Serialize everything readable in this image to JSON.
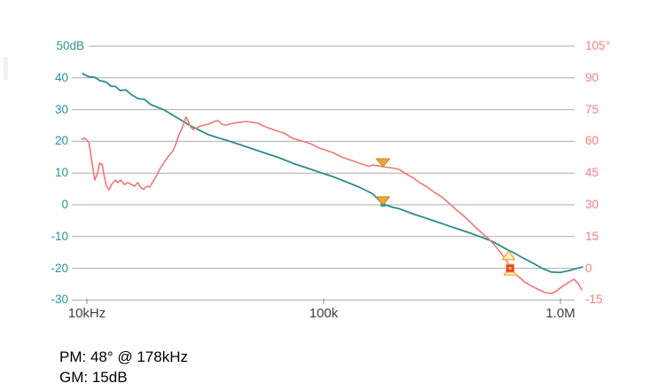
{
  "chart_data": {
    "type": "line",
    "title": "",
    "x_axis": {
      "scale": "log",
      "unit": "Hz",
      "ticks": [
        {
          "label": "10kHz",
          "f_kHz": 10
        },
        {
          "label": "100k",
          "f_kHz": 100
        },
        {
          "label": "1.0M",
          "f_kHz": 1000
        }
      ],
      "range_kHz": [
        9.5,
        1250
      ]
    },
    "y_left": {
      "name": "gain",
      "unit": "dB",
      "color": "#289696",
      "range": [
        -30,
        50
      ],
      "ticks": [
        {
          "label": "50dB",
          "value": 50
        },
        {
          "label": "40",
          "value": 40
        },
        {
          "label": "30",
          "value": 30
        },
        {
          "label": "20",
          "value": 20
        },
        {
          "label": "10",
          "value": 10
        },
        {
          "label": "0",
          "value": 0
        },
        {
          "label": "-10",
          "value": -10
        },
        {
          "label": "-20",
          "value": -20
        },
        {
          "label": "-30",
          "value": -30
        }
      ]
    },
    "y_right": {
      "name": "phase",
      "unit": "deg",
      "color": "#fb7d7d",
      "range": [
        -15,
        105
      ],
      "ticks": [
        {
          "label": "105°",
          "value": 105
        },
        {
          "label": "90",
          "value": 90
        },
        {
          "label": "75",
          "value": 75
        },
        {
          "label": "60",
          "value": 60
        },
        {
          "label": "45",
          "value": 45
        },
        {
          "label": "30",
          "value": 30
        },
        {
          "label": "15",
          "value": 15
        },
        {
          "label": "0",
          "value": 0
        },
        {
          "label": "-15",
          "value": -15
        }
      ]
    },
    "grid": {
      "on": true,
      "color": "#ababab"
    },
    "series": [
      {
        "name": "gain",
        "axis": "gain",
        "color": "#2e8c89",
        "width": 1.8,
        "points": [
          [
            9.6,
            41.3
          ],
          [
            10.2,
            40.3
          ],
          [
            10.8,
            40.2
          ],
          [
            11.3,
            39.2
          ],
          [
            12.1,
            38.6
          ],
          [
            12.6,
            37.4
          ],
          [
            13.2,
            37.3
          ],
          [
            13.8,
            36.0
          ],
          [
            14.6,
            36.2
          ],
          [
            15.3,
            34.9
          ],
          [
            16.4,
            33.5
          ],
          [
            17.5,
            33.2
          ],
          [
            18.6,
            31.6
          ],
          [
            19.9,
            30.7
          ],
          [
            21.2,
            29.9
          ],
          [
            23.1,
            28.2
          ],
          [
            25.2,
            26.5
          ],
          [
            27.4,
            24.9
          ],
          [
            29.9,
            23.5
          ],
          [
            32.6,
            22.1
          ],
          [
            35.5,
            21.2
          ],
          [
            38.7,
            20.4
          ],
          [
            44.1,
            19.0
          ],
          [
            50.2,
            17.6
          ],
          [
            57.1,
            16.2
          ],
          [
            65.0,
            14.8
          ],
          [
            74.0,
            13.1
          ],
          [
            84.2,
            11.7
          ],
          [
            95.8,
            10.3
          ],
          [
            109,
            8.9
          ],
          [
            124,
            7.3
          ],
          [
            141,
            5.6
          ],
          [
            161,
            3.5
          ],
          [
            178,
            0.2
          ],
          [
            196,
            -0.8
          ],
          [
            208,
            -1.2
          ],
          [
            237,
            -2.8
          ],
          [
            270,
            -4.2
          ],
          [
            307,
            -5.6
          ],
          [
            349,
            -7.0
          ],
          [
            398,
            -8.4
          ],
          [
            452,
            -9.9
          ],
          [
            515,
            -11.5
          ],
          [
            586,
            -13.8
          ],
          [
            639,
            -15.2
          ],
          [
            696,
            -16.8
          ],
          [
            759,
            -18.2
          ],
          [
            842,
            -20.1
          ],
          [
            917,
            -21.2
          ],
          [
            1000,
            -21.3
          ],
          [
            1090,
            -20.7
          ],
          [
            1190,
            -19.9
          ],
          [
            1240,
            -19.6
          ]
        ]
      },
      {
        "name": "phase",
        "axis": "phase",
        "color": "#f47676",
        "width": 1.6,
        "points": [
          [
            9.5,
            61.0
          ],
          [
            9.8,
            61.5
          ],
          [
            10.2,
            59.5
          ],
          [
            10.4,
            53.4
          ],
          [
            10.6,
            47.2
          ],
          [
            10.8,
            41.7
          ],
          [
            11.1,
            45.1
          ],
          [
            11.3,
            49.7
          ],
          [
            11.6,
            49.0
          ],
          [
            11.8,
            44.2
          ],
          [
            12.1,
            38.8
          ],
          [
            12.4,
            37.1
          ],
          [
            12.7,
            39.6
          ],
          [
            13.2,
            41.7
          ],
          [
            13.5,
            40.5
          ],
          [
            13.9,
            41.7
          ],
          [
            14.4,
            39.6
          ],
          [
            14.9,
            40.5
          ],
          [
            15.4,
            39.6
          ],
          [
            15.9,
            38.8
          ],
          [
            16.4,
            40.5
          ],
          [
            16.8,
            38.4
          ],
          [
            17.4,
            37.3
          ],
          [
            17.9,
            38.8
          ],
          [
            18.4,
            38.4
          ],
          [
            19.0,
            40.9
          ],
          [
            19.7,
            43.8
          ],
          [
            20.3,
            46.8
          ],
          [
            21.2,
            50.1
          ],
          [
            22.1,
            53.0
          ],
          [
            23.1,
            55.5
          ],
          [
            23.7,
            58.5
          ],
          [
            24.5,
            63.1
          ],
          [
            25.2,
            66.0
          ],
          [
            25.8,
            69.4
          ],
          [
            26.2,
            71.5
          ],
          [
            26.7,
            69.8
          ],
          [
            27.4,
            66.8
          ],
          [
            28.1,
            65.6
          ],
          [
            29.1,
            66.4
          ],
          [
            30.3,
            67.3
          ],
          [
            32.6,
            68.1
          ],
          [
            34.5,
            69.4
          ],
          [
            35.8,
            69.8
          ],
          [
            37.1,
            68.1
          ],
          [
            38.7,
            67.7
          ],
          [
            41.2,
            68.5
          ],
          [
            44.1,
            69.0
          ],
          [
            47.1,
            69.4
          ],
          [
            50.2,
            69.0
          ],
          [
            52.9,
            68.5
          ],
          [
            57.1,
            66.8
          ],
          [
            62.4,
            65.2
          ],
          [
            68.0,
            63.9
          ],
          [
            74.0,
            61.4
          ],
          [
            80.5,
            60.2
          ],
          [
            87.8,
            58.9
          ],
          [
            95.8,
            56.8
          ],
          [
            104,
            55.5
          ],
          [
            109,
            54.7
          ],
          [
            119,
            52.6
          ],
          [
            129,
            51.3
          ],
          [
            141,
            49.7
          ],
          [
            150,
            48.8
          ],
          [
            155,
            48.2
          ],
          [
            161,
            48.8
          ],
          [
            178,
            48.0
          ],
          [
            190,
            47.6
          ],
          [
            208,
            46.8
          ],
          [
            222,
            44.7
          ],
          [
            237,
            43.0
          ],
          [
            254,
            40.5
          ],
          [
            274,
            38.4
          ],
          [
            293,
            35.9
          ],
          [
            315,
            33.8
          ],
          [
            338,
            30.8
          ],
          [
            361,
            27.9
          ],
          [
            388,
            25.0
          ],
          [
            415,
            22.0
          ],
          [
            448,
            18.3
          ],
          [
            471,
            16.2
          ],
          [
            496,
            14.1
          ],
          [
            525,
            11.1
          ],
          [
            552,
            8.2
          ],
          [
            581,
            4.9
          ],
          [
            601,
            2.3
          ],
          [
            616,
            0.0
          ],
          [
            638,
            -2.3
          ],
          [
            673,
            -4.4
          ],
          [
            706,
            -6.5
          ],
          [
            759,
            -8.5
          ],
          [
            812,
            -10.2
          ],
          [
            862,
            -11.5
          ],
          [
            917,
            -11.9
          ],
          [
            966,
            -10.6
          ],
          [
            1020,
            -8.5
          ],
          [
            1090,
            -6.5
          ],
          [
            1140,
            -5.2
          ],
          [
            1190,
            -7.3
          ],
          [
            1230,
            -10.2
          ]
        ]
      }
    ],
    "markers": [
      {
        "name": "pm-phase-marker",
        "shape": "triangle-down",
        "f_kHz": 178,
        "axis": "phase",
        "value": 48,
        "fill": "#f0a73a",
        "stroke": "#d18a20"
      },
      {
        "name": "pm-gain-marker",
        "shape": "triangle-down",
        "f_kHz": 178,
        "axis": "gain",
        "value": 0,
        "fill": "#f0a73a",
        "stroke": "#d18a20",
        "point_square": "#2e8c89"
      },
      {
        "name": "gm-gain-marker",
        "shape": "triangle-up",
        "f_kHz": 605,
        "axis": "gain",
        "value": -14.6,
        "fill": "#fcf0c0",
        "stroke": "#efa43e"
      },
      {
        "name": "gm-phase-marker-triangle",
        "shape": "triangle-up",
        "f_kHz": 613,
        "axis": "phase",
        "value": 0.8,
        "fill": "#fcf0c0",
        "stroke": "#efa43e"
      },
      {
        "name": "gm-phase-marker",
        "shape": "square",
        "f_kHz": 613,
        "axis": "phase",
        "value": 0,
        "fill": "#e7432c",
        "stroke": "#efa43e",
        "dot": "#f8c04a"
      }
    ],
    "legend": {
      "visible": false
    }
  },
  "annotations": {
    "pm": "PM: 48° @ 178kHz",
    "gm": "GM: 15dB"
  }
}
